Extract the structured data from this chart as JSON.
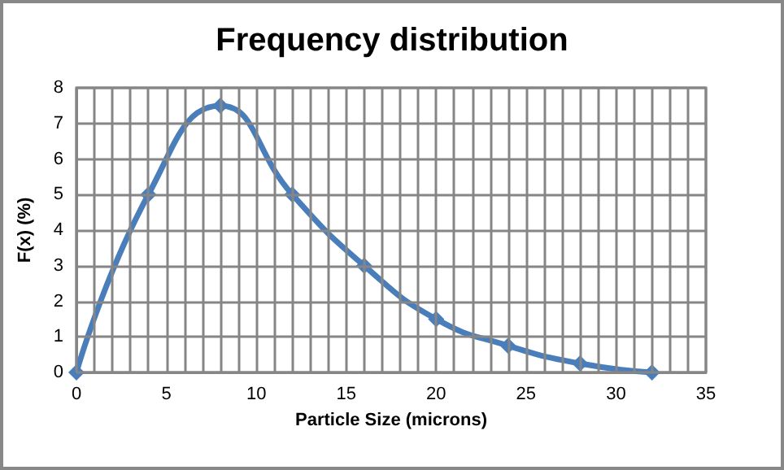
{
  "chart_data": {
    "type": "line",
    "title": "Frequency distribution",
    "xlabel": "Particle Size (microns)",
    "ylabel": "F(x) (%)",
    "x": [
      0,
      4,
      8,
      12,
      16,
      20,
      24,
      28,
      32
    ],
    "series": [
      {
        "color": "#4a7ebb",
        "values": [
          0,
          5,
          7.5,
          5,
          3,
          1.5,
          0.75,
          0.25,
          0
        ]
      }
    ],
    "xlim": [
      0,
      35
    ],
    "xticks": [
      0,
      {
        "value": 1,
        "label": null
      },
      {
        "value": 2,
        "label": null
      },
      {
        "value": 3,
        "label": null
      },
      {
        "value": 4,
        "label": null
      },
      5,
      {
        "value": 6,
        "label": null
      },
      {
        "value": 7,
        "label": null
      },
      {
        "value": 8,
        "label": null
      },
      {
        "value": 9,
        "label": null
      },
      10,
      {
        "value": 11,
        "label": null
      },
      {
        "value": 12,
        "label": null
      },
      {
        "value": 13,
        "label": null
      },
      {
        "value": 14,
        "label": null
      },
      15,
      {
        "value": 16,
        "label": null
      },
      {
        "value": 17,
        "label": null
      },
      {
        "value": 18,
        "label": null
      },
      {
        "value": 19,
        "label": null
      },
      20,
      {
        "value": 21,
        "label": null
      },
      {
        "value": 22,
        "label": null
      },
      {
        "value": 23,
        "label": null
      },
      {
        "value": 24,
        "label": null
      },
      25,
      {
        "value": 26,
        "label": null
      },
      {
        "value": 27,
        "label": null
      },
      {
        "value": 28,
        "label": null
      },
      {
        "value": 29,
        "label": null
      },
      30,
      {
        "value": 31,
        "label": null
      },
      {
        "value": 32,
        "label": null
      },
      {
        "value": 33,
        "label": null
      },
      {
        "value": 34,
        "label": null
      },
      35
    ],
    "ylim": [
      0,
      8
    ],
    "yticks": [
      0,
      1,
      2,
      3,
      4,
      5,
      6,
      7,
      8
    ],
    "grid": true,
    "marker": "diamond",
    "line_style": "solid"
  }
}
